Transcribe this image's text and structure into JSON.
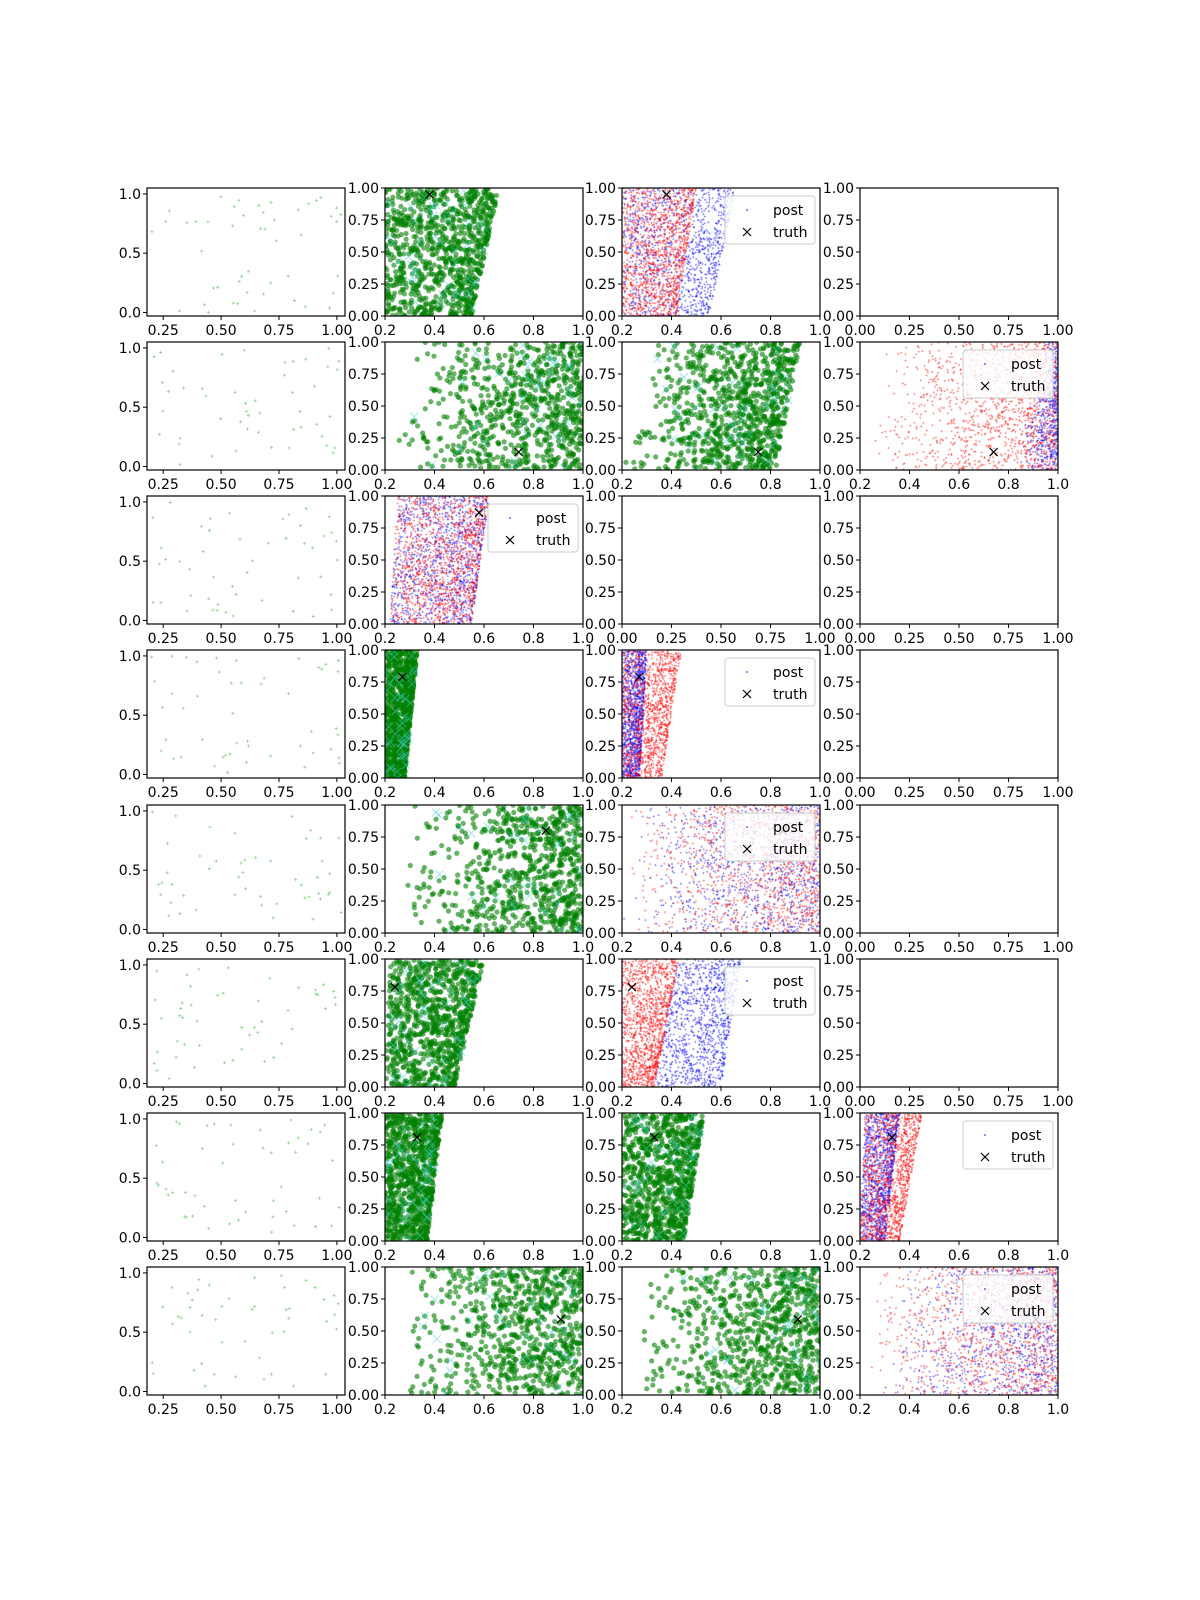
{
  "chart_data": {
    "type": "scatter",
    "grid": {
      "rows": 8,
      "cols": 4
    },
    "legend": {
      "labels": [
        "post",
        "truth"
      ],
      "placement": "upper right"
    },
    "colors": {
      "obs": "#7fcf7f",
      "green": "#008000",
      "cyan": "#40d0d0",
      "red": "#ff0000",
      "blue": "#0000ff",
      "truth": "#000000"
    },
    "axes_types": {
      "obs": {
        "xlim": [
          0.18,
          1.035
        ],
        "ylim": [
          -0.03,
          1.05
        ],
        "xticks": [
          "0.25",
          "0.50",
          "0.75",
          "1.00"
        ],
        "xtick_values": [
          0.25,
          0.5,
          0.75,
          1.0
        ],
        "yticks": [
          "0.0",
          "0.5",
          "1.0"
        ],
        "ytick_values": [
          0,
          0.5,
          1.0
        ]
      },
      "post": {
        "xlim": [
          0.2,
          1.0
        ],
        "ylim": [
          0,
          1
        ],
        "xticks": [
          "0.2",
          "0.4",
          "0.6",
          "0.8",
          "1.0"
        ],
        "xtick_values": [
          0.2,
          0.4,
          0.6,
          0.8,
          1.0
        ],
        "yticks": [
          "0.00",
          "0.25",
          "0.50",
          "0.75",
          "1.00"
        ],
        "ytick_values": [
          0,
          0.25,
          0.5,
          0.75,
          1.0
        ]
      },
      "empty": {
        "xlim": [
          0,
          1
        ],
        "ylim": [
          0,
          1
        ],
        "xticks": [
          "0.00",
          "0.25",
          "0.50",
          "0.75",
          "1.00"
        ],
        "xtick_values": [
          0,
          0.25,
          0.5,
          0.75,
          1.0
        ],
        "yticks": [
          "0.00",
          "0.25",
          "0.50",
          "0.75",
          "1.00"
        ],
        "ytick_values": [
          0,
          0.25,
          0.5,
          0.75,
          1.0
        ]
      }
    },
    "panels": [
      [
        {
          "kind": "obs"
        },
        {
          "kind": "green",
          "band": [
            [
              0.2,
              0.55
            ],
            [
              0.2,
              0.66
            ]
          ],
          "truth": [
            0.38,
            0.95
          ]
        },
        {
          "kind": "redblue",
          "red": [
            [
              0.2,
              0.42
            ],
            [
              0.2,
              0.5
            ]
          ],
          "blue": [
            [
              0.2,
              0.55
            ],
            [
              0.2,
              0.66
            ]
          ],
          "truth": [
            0.38,
            0.95
          ],
          "legend": true
        },
        {
          "kind": "empty"
        }
      ],
      [
        {
          "kind": "obs"
        },
        {
          "kind": "green",
          "band": [
            [
              0.22,
              1.05
            ],
            [
              0.3,
              1.05
            ]
          ],
          "density": "increasing",
          "truth": [
            0.74,
            0.14
          ]
        },
        {
          "kind": "green",
          "band": [
            [
              0.2,
              0.82
            ],
            [
              0.3,
              0.92
            ]
          ],
          "density": "increasing",
          "truth": [
            0.75,
            0.14
          ]
        },
        {
          "kind": "redblue",
          "red": [
            [
              0.2,
              1.0
            ],
            [
              0.3,
              1.0
            ]
          ],
          "blue": [
            [
              0.82,
              1.05
            ],
            [
              0.95,
              1.05
            ]
          ],
          "density": "increasing",
          "truth": [
            0.74,
            0.14
          ],
          "legend": true
        }
      ],
      [
        {
          "kind": "obs"
        },
        {
          "kind": "redblue",
          "red": [
            [
              0.22,
              0.55
            ],
            [
              0.25,
              0.62
            ]
          ],
          "blue": [
            [
              0.22,
              0.55
            ],
            [
              0.25,
              0.62
            ]
          ],
          "truth": [
            0.58,
            0.87
          ],
          "legend": true
        },
        {
          "kind": "empty"
        },
        {
          "kind": "empty"
        }
      ],
      [
        {
          "kind": "obs"
        },
        {
          "kind": "green",
          "band": [
            [
              0.2,
              0.28
            ],
            [
              0.2,
              0.33
            ]
          ],
          "truth": [
            0.27,
            0.79
          ]
        },
        {
          "kind": "redblue",
          "red": [
            [
              0.2,
              0.36
            ],
            [
              0.2,
              0.44
            ]
          ],
          "blue": [
            [
              0.2,
              0.27
            ],
            [
              0.2,
              0.3
            ]
          ],
          "truth": [
            0.27,
            0.79
          ],
          "legend": true
        },
        {
          "kind": "empty"
        }
      ],
      [
        {
          "kind": "obs"
        },
        {
          "kind": "green",
          "band": [
            [
              0.22,
              1.05
            ],
            [
              0.3,
              1.05
            ]
          ],
          "density": "increasing",
          "truth": [
            0.85,
            0.8
          ]
        },
        {
          "kind": "redblue",
          "red": [
            [
              0.2,
              1.05
            ],
            [
              0.2,
              1.05
            ]
          ],
          "blue": [
            [
              0.2,
              1.05
            ],
            [
              0.2,
              1.05
            ]
          ],
          "density": "increasing",
          "truth": [
            0.85,
            0.8
          ],
          "legend": true
        },
        {
          "kind": "empty"
        }
      ],
      [
        {
          "kind": "obs"
        },
        {
          "kind": "green",
          "band": [
            [
              0.2,
              0.48
            ],
            [
              0.22,
              0.6
            ]
          ],
          "truth": [
            0.24,
            0.78
          ]
        },
        {
          "kind": "redblue",
          "red": [
            [
              0.2,
              0.33
            ],
            [
              0.2,
              0.43
            ]
          ],
          "blue": [
            [
              0.33,
              0.6
            ],
            [
              0.42,
              0.68
            ]
          ],
          "truth": [
            0.24,
            0.78
          ],
          "legend": true
        },
        {
          "kind": "empty"
        }
      ],
      [
        {
          "kind": "obs"
        },
        {
          "kind": "green",
          "band": [
            [
              0.2,
              0.37
            ],
            [
              0.2,
              0.43
            ]
          ],
          "truth": [
            0.33,
            0.81
          ]
        },
        {
          "kind": "green",
          "band": [
            [
              0.2,
              0.45
            ],
            [
              0.2,
              0.53
            ]
          ],
          "truth": [
            0.33,
            0.81
          ]
        },
        {
          "kind": "redblue",
          "red": [
            [
              0.2,
              0.36
            ],
            [
              0.22,
              0.45
            ]
          ],
          "blue": [
            [
              0.2,
              0.3
            ],
            [
              0.22,
              0.36
            ]
          ],
          "truth": [
            0.33,
            0.81
          ],
          "legend": true
        }
      ],
      [
        {
          "kind": "obs"
        },
        {
          "kind": "green",
          "band": [
            [
              0.22,
              1.05
            ],
            [
              0.3,
              1.05
            ]
          ],
          "density": "increasing",
          "truth": [
            0.91,
            0.59
          ]
        },
        {
          "kind": "green",
          "band": [
            [
              0.22,
              1.05
            ],
            [
              0.3,
              1.05
            ]
          ],
          "density": "increasing",
          "truth": [
            0.91,
            0.59
          ]
        },
        {
          "kind": "redblue",
          "red": [
            [
              0.2,
              1.05
            ],
            [
              0.25,
              1.05
            ]
          ],
          "blue": [
            [
              0.3,
              1.05
            ],
            [
              0.35,
              1.05
            ]
          ],
          "density": "increasing",
          "truth": [
            0.91,
            0.59
          ],
          "legend": true
        }
      ]
    ]
  }
}
